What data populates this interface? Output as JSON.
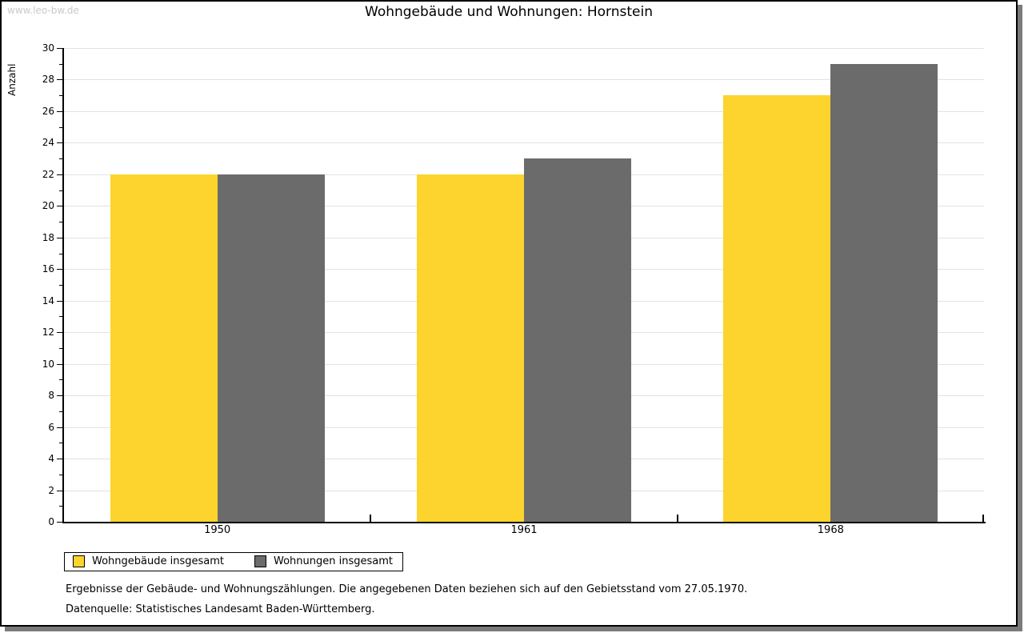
{
  "watermark": "www.leo-bw.de",
  "title": "Wohngebäude und Wohnungen: Hornstein",
  "chart_data": {
    "type": "bar",
    "title": "Wohngebäude und Wohnungen: Hornstein",
    "xlabel": "",
    "ylabel": "Anzahl",
    "categories": [
      "1950",
      "1961",
      "1968"
    ],
    "series": [
      {
        "name": "Wohngebäude insgesamt",
        "color": "#FCD42D",
        "values": [
          22,
          22,
          27
        ]
      },
      {
        "name": "Wohnungen insgesamt",
        "color": "#6B6B6B",
        "values": [
          22,
          23,
          29
        ]
      }
    ],
    "ylim": [
      0,
      30
    ],
    "ytick_major_step": 2,
    "ytick_minor_step": 1,
    "grid": true,
    "legend_position": "bottom-left"
  },
  "footer": {
    "line1": "Ergebnisse der Gebäude- und Wohnungszählungen. Die angegebenen Daten beziehen sich auf den Gebietsstand vom 27.05.1970.",
    "line2": "Datenquelle: Statistisches Landesamt Baden-Württemberg."
  }
}
